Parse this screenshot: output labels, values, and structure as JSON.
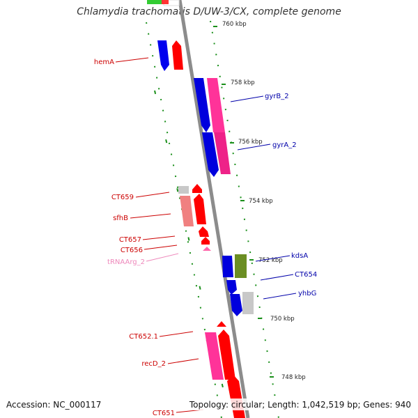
{
  "title": "Chlamydia trachomatis D/UW-3/CX, complete genome",
  "footer": {
    "accession": "Accession: NC_000117",
    "summary": "Topology: circular; Length: 1,042,519 bp; Genes: 940"
  },
  "colors": {
    "forward_cds": "#ff0000",
    "reverse_cds": "#0000ff",
    "pseudo_pink": "#ff3399",
    "light_red": "#f08080",
    "grey": "#c8c8c8",
    "olive": "#6b8e23",
    "trna": "#ff66aa",
    "dots": "#1a8f1a",
    "backbone": "#8c8c8c",
    "label_left": "#cc0000",
    "label_right": "#0000aa",
    "label_trna": "#ee88bb",
    "ticks": "#222222"
  },
  "ticks": [
    "760 kbp",
    "758 kbp",
    "756 kbp",
    "754 kbp",
    "752 kbp",
    "750 kbp",
    "748 kbp"
  ],
  "genes_left": [
    "hemA",
    "CT659",
    "sfhB",
    "CT657",
    "CT656",
    "tRNAArg_2",
    "CT652.1",
    "recD_2",
    "CT651"
  ],
  "genes_right": [
    "gyrB_2",
    "gyrA_2",
    "kdsA",
    "CT654",
    "yhbG"
  ]
}
